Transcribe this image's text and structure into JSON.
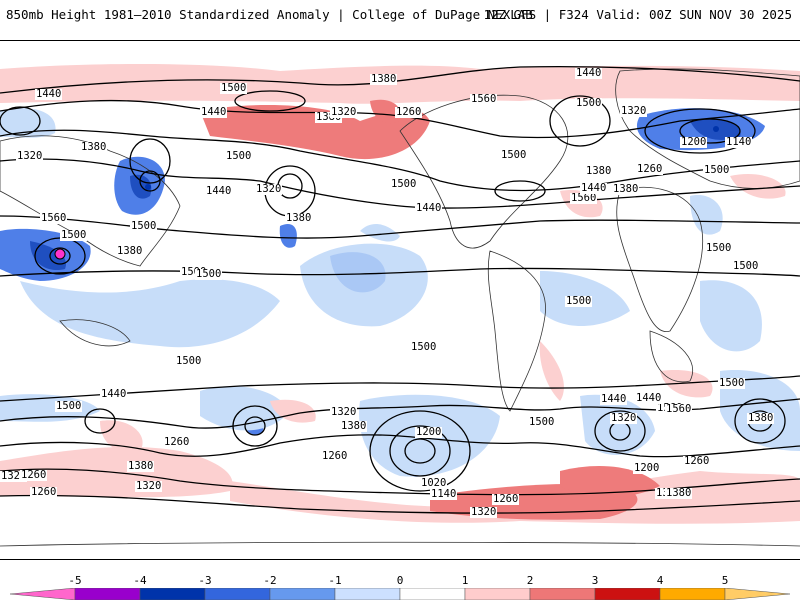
{
  "header": {
    "title": "850mb Height 1981–2010 Standardized Anomaly | College of DuPage NEXLAB",
    "run_info": "12Z GFS | F324 Valid: 00Z SUN NOV 30 2025"
  },
  "map": {
    "projection": "global cylindrical",
    "contour_labels": [
      "1320",
      "1440",
      "1500",
      "1380",
      "1500",
      "1440",
      "1500",
      "1380",
      "1500",
      "1320",
      "1440",
      "1380",
      "1320",
      "1260",
      "1380",
      "1440",
      "1500",
      "1560",
      "1320",
      "1200",
      "1140",
      "1260",
      "1380",
      "1500",
      "1560",
      "1560",
      "1500",
      "1440",
      "1380",
      "1500",
      "1380",
      "1440",
      "1500",
      "1500",
      "1500",
      "1500",
      "1500",
      "1440",
      "1560",
      "1500",
      "1440",
      "1320",
      "1560",
      "1260",
      "1500",
      "1380",
      "1320",
      "1260",
      "1200",
      "1020",
      "1140",
      "1260",
      "1500",
      "1320",
      "1200",
      "1260",
      "1320",
      "1380",
      "1320",
      "1380",
      "1260",
      "1320",
      "1380",
      "1440",
      "1500",
      "1380",
      "1500",
      "1260"
    ]
  },
  "colorbar": {
    "ticks": [
      "-5",
      "-4",
      "-3",
      "-2",
      "-1",
      "0",
      "1",
      "2",
      "3",
      "4",
      "5"
    ],
    "colors": [
      "#ff66cc",
      "#9900cc",
      "#0033aa",
      "#3366dd",
      "#6699ee",
      "#cce0ff",
      "#ffffff",
      "#ffcccc",
      "#ee7777",
      "#cc1111",
      "#ffaa00",
      "#ffcc66"
    ]
  }
}
